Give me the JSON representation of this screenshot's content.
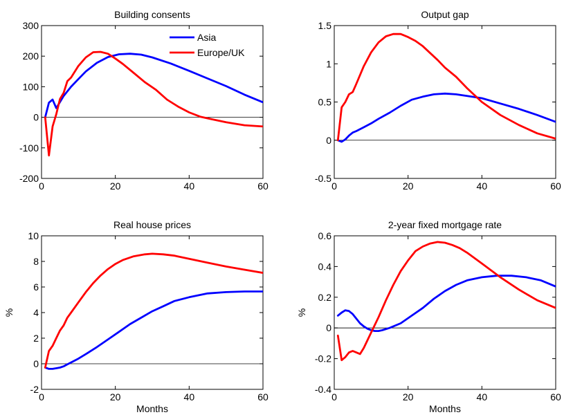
{
  "chart_data": [
    {
      "type": "line",
      "title": "Building consents",
      "xlabel": "",
      "ylabel": "",
      "xlim": [
        0,
        60
      ],
      "ylim": [
        -200,
        300
      ],
      "xticks": [
        0,
        20,
        40,
        60
      ],
      "yticks": [
        -200,
        -100,
        0,
        100,
        200,
        300
      ],
      "zero_line": true,
      "legend": {
        "location": "top-right",
        "entries": [
          "Asia",
          "Europe/UK"
        ]
      },
      "series": [
        {
          "name": "Asia",
          "color": "#0000ff",
          "x": [
            1,
            2,
            3,
            4,
            5,
            6,
            8,
            10,
            12,
            15,
            18,
            21,
            24,
            27,
            30,
            35,
            40,
            45,
            50,
            55,
            60
          ],
          "y": [
            0,
            48,
            58,
            30,
            50,
            70,
            100,
            125,
            150,
            178,
            197,
            206,
            208,
            205,
            196,
            176,
            152,
            127,
            102,
            74,
            49
          ]
        },
        {
          "name": "Europe/UK",
          "color": "#ff0000",
          "x": [
            1,
            2,
            3,
            4,
            5,
            6,
            7,
            8,
            10,
            12,
            14,
            16,
            18,
            20,
            22,
            25,
            28,
            31,
            34,
            37,
            40,
            43,
            46,
            50,
            55,
            60
          ],
          "y": [
            0,
            -125,
            -30,
            10,
            60,
            80,
            118,
            130,
            168,
            196,
            213,
            214,
            208,
            192,
            175,
            145,
            115,
            90,
            58,
            35,
            16,
            2,
            -6,
            -16,
            -26,
            -30
          ]
        }
      ]
    },
    {
      "type": "line",
      "title": "Output gap",
      "xlabel": "",
      "ylabel": "",
      "xlim": [
        0,
        60
      ],
      "ylim": [
        -0.5,
        1.5
      ],
      "xticks": [
        0,
        20,
        40,
        60
      ],
      "yticks": [
        -0.5,
        0,
        0.5,
        1,
        1.5
      ],
      "zero_line": true,
      "series": [
        {
          "name": "Asia",
          "color": "#0000ff",
          "x": [
            1,
            2,
            3,
            4,
            5,
            6,
            8,
            10,
            12,
            15,
            18,
            21,
            24,
            27,
            30,
            33,
            36,
            40,
            45,
            50,
            55,
            60
          ],
          "y": [
            0,
            -0.02,
            0.01,
            0.06,
            0.1,
            0.12,
            0.17,
            0.22,
            0.28,
            0.36,
            0.45,
            0.53,
            0.57,
            0.6,
            0.61,
            0.6,
            0.58,
            0.55,
            0.48,
            0.41,
            0.33,
            0.24
          ]
        },
        {
          "name": "Europe/UK",
          "color": "#ff0000",
          "x": [
            1,
            2,
            3,
            4,
            5,
            6,
            8,
            10,
            12,
            14,
            16,
            18,
            20,
            22,
            24,
            26,
            28,
            30,
            33,
            36,
            40,
            45,
            50,
            55,
            60
          ],
          "y": [
            0,
            0.43,
            0.5,
            0.6,
            0.63,
            0.74,
            0.97,
            1.15,
            1.28,
            1.36,
            1.39,
            1.39,
            1.35,
            1.3,
            1.23,
            1.14,
            1.05,
            0.95,
            0.83,
            0.68,
            0.5,
            0.33,
            0.2,
            0.09,
            0.02
          ]
        }
      ]
    },
    {
      "type": "line",
      "title": "Real house prices",
      "xlabel": "Months",
      "ylabel": "%",
      "xlim": [
        0,
        60
      ],
      "ylim": [
        -2,
        10
      ],
      "xticks": [
        0,
        20,
        40,
        60
      ],
      "yticks": [
        -2,
        0,
        2,
        4,
        6,
        8,
        10
      ],
      "zero_line": true,
      "series": [
        {
          "name": "Asia",
          "color": "#0000ff",
          "x": [
            1,
            2,
            3,
            4,
            5,
            6,
            7,
            8,
            10,
            12,
            15,
            18,
            21,
            24,
            27,
            30,
            33,
            36,
            40,
            45,
            50,
            55,
            60
          ],
          "y": [
            -0.3,
            -0.4,
            -0.4,
            -0.35,
            -0.3,
            -0.2,
            -0.05,
            0.1,
            0.4,
            0.75,
            1.3,
            1.9,
            2.5,
            3.1,
            3.6,
            4.1,
            4.5,
            4.9,
            5.2,
            5.5,
            5.6,
            5.65,
            5.65
          ]
        },
        {
          "name": "Europe/UK",
          "color": "#ff0000",
          "x": [
            1,
            2,
            3,
            4,
            5,
            6,
            7,
            8,
            10,
            12,
            14,
            16,
            18,
            20,
            22,
            25,
            28,
            30,
            33,
            36,
            40,
            45,
            50,
            55,
            60
          ],
          "y": [
            -0.3,
            1.0,
            1.4,
            2.0,
            2.6,
            3.0,
            3.6,
            4.0,
            4.8,
            5.6,
            6.3,
            6.9,
            7.4,
            7.8,
            8.1,
            8.4,
            8.55,
            8.6,
            8.55,
            8.45,
            8.2,
            7.9,
            7.6,
            7.35,
            7.1
          ]
        }
      ]
    },
    {
      "type": "line",
      "title": "2-year fixed mortgage rate",
      "xlabel": "Months",
      "ylabel": "%",
      "xlim": [
        0,
        60
      ],
      "ylim": [
        -0.4,
        0.6
      ],
      "xticks": [
        0,
        20,
        40,
        60
      ],
      "yticks": [
        -0.4,
        -0.2,
        0,
        0.2,
        0.4,
        0.6
      ],
      "zero_line": true,
      "series": [
        {
          "name": "Asia",
          "color": "#0000ff",
          "x": [
            1,
            2,
            3,
            4,
            5,
            6,
            7,
            8,
            9,
            10,
            11,
            12,
            13,
            15,
            18,
            21,
            24,
            27,
            30,
            33,
            36,
            40,
            44,
            48,
            52,
            56,
            60
          ],
          "y": [
            0.08,
            0.1,
            0.115,
            0.11,
            0.09,
            0.06,
            0.03,
            0.01,
            -0.005,
            -0.015,
            -0.02,
            -0.02,
            -0.015,
            0.0,
            0.03,
            0.08,
            0.13,
            0.19,
            0.24,
            0.28,
            0.31,
            0.33,
            0.34,
            0.34,
            0.33,
            0.31,
            0.27
          ]
        },
        {
          "name": "Europe/UK",
          "color": "#ff0000",
          "x": [
            1,
            2,
            3,
            4,
            5,
            6,
            7,
            8,
            10,
            12,
            14,
            16,
            18,
            20,
            22,
            24,
            26,
            28,
            30,
            32,
            34,
            36,
            40,
            45,
            50,
            55,
            60
          ],
          "y": [
            -0.05,
            -0.21,
            -0.19,
            -0.16,
            -0.15,
            -0.16,
            -0.17,
            -0.13,
            -0.03,
            0.07,
            0.18,
            0.28,
            0.37,
            0.44,
            0.5,
            0.53,
            0.55,
            0.56,
            0.555,
            0.54,
            0.52,
            0.49,
            0.42,
            0.33,
            0.25,
            0.18,
            0.13
          ]
        }
      ]
    }
  ]
}
